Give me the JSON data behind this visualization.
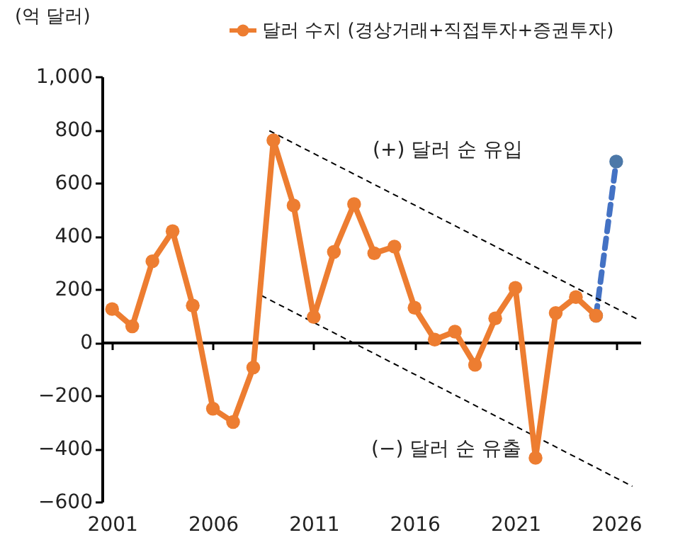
{
  "chart_data": {
    "type": "line",
    "ylabel": "(억 달러)",
    "x": [
      2001,
      2002,
      2003,
      2004,
      2005,
      2006,
      2007,
      2008,
      2009,
      2010,
      2011,
      2012,
      2013,
      2014,
      2015,
      2016,
      2017,
      2018,
      2019,
      2020,
      2021,
      2022,
      2023,
      2024,
      2025
    ],
    "series": [
      {
        "name": "달러 수지 (경상거래+직접투자+증권투자)",
        "color": "#ed7d31",
        "values": [
          125,
          60,
          305,
          418,
          138,
          -250,
          -300,
          -95,
          760,
          515,
          95,
          340,
          520,
          335,
          360,
          130,
          10,
          40,
          -85,
          90,
          205,
          -435,
          110,
          170,
          100
        ]
      },
      {
        "type": "line",
        "x": [
          2025,
          2026
        ],
        "color": "#4472c4",
        "line_style": "dashed",
        "values": [
          100,
          680
        ]
      },
      {
        "type": "line",
        "x": [
          2008.8,
          2027.1
        ],
        "color": "#000000",
        "line_style": "dashed",
        "marker": "none",
        "values": [
          796,
          85
        ]
      },
      {
        "type": "line",
        "x": [
          2008.4,
          2026.8
        ],
        "color": "#000000",
        "line_style": "dashed",
        "marker": "none",
        "values": [
          176,
          -542
        ]
      }
    ],
    "annotations": [
      "(+) 달러 순 유입",
      "(−) 달러 순 유출"
    ],
    "xlim": [
      2000.5,
      2027.2
    ],
    "xticks": [
      2001,
      2006,
      2011,
      2016,
      2021,
      2026
    ],
    "ylim": [
      -600,
      1000
    ],
    "yticks": [
      -600,
      -400,
      -200,
      0,
      200,
      400,
      600,
      800,
      {
        "value": 1000,
        "label": "1,000"
      }
    ],
    "legend": "top",
    "marker": "circle",
    "line_style": "solid"
  }
}
